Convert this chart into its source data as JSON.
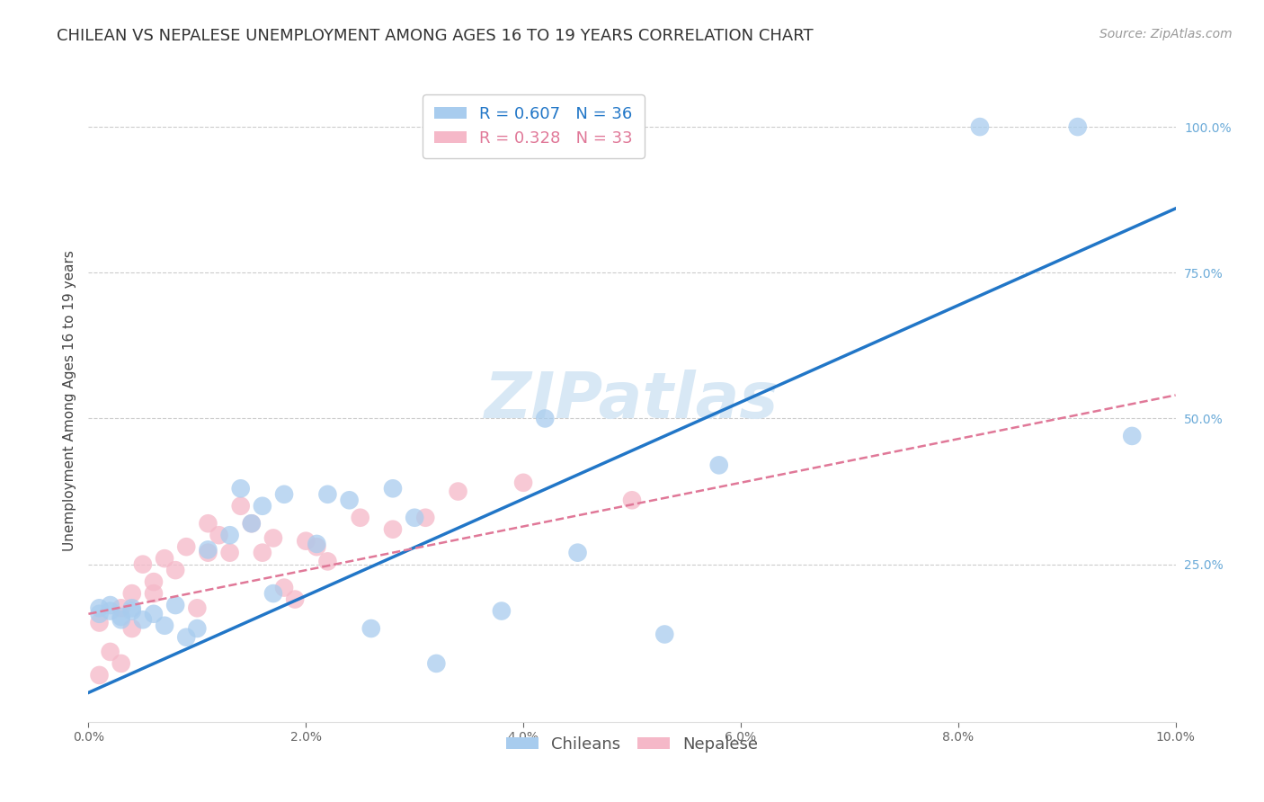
{
  "title": "CHILEAN VS NEPALESE UNEMPLOYMENT AMONG AGES 16 TO 19 YEARS CORRELATION CHART",
  "source": "Source: ZipAtlas.com",
  "ylabel": "Unemployment Among Ages 16 to 19 years",
  "xlim": [
    0.0,
    0.1
  ],
  "ylim": [
    -0.02,
    1.08
  ],
  "xticks": [
    0.0,
    0.02,
    0.04,
    0.06,
    0.08,
    0.1
  ],
  "xticklabels": [
    "0.0%",
    "2.0%",
    "4.0%",
    "6.0%",
    "8.0%",
    "10.0%"
  ],
  "yticks": [
    0.25,
    0.5,
    0.75,
    1.0
  ],
  "yticklabels": [
    "25.0%",
    "50.0%",
    "75.0%",
    "100.0%"
  ],
  "chilean_R": 0.607,
  "chilean_N": 36,
  "nepalese_R": 0.328,
  "nepalese_N": 33,
  "chilean_color": "#a8ccee",
  "nepalese_color": "#f5b8c8",
  "chilean_line_color": "#2176c7",
  "nepalese_line_color": "#e07898",
  "watermark": "ZIPatlas",
  "chilean_x": [
    0.001,
    0.001,
    0.002,
    0.002,
    0.003,
    0.003,
    0.004,
    0.004,
    0.005,
    0.006,
    0.007,
    0.008,
    0.009,
    0.01,
    0.011,
    0.013,
    0.014,
    0.015,
    0.016,
    0.017,
    0.018,
    0.021,
    0.022,
    0.024,
    0.026,
    0.028,
    0.03,
    0.032,
    0.038,
    0.042,
    0.045,
    0.053,
    0.058,
    0.082,
    0.091,
    0.096
  ],
  "chilean_y": [
    0.175,
    0.165,
    0.17,
    0.18,
    0.16,
    0.155,
    0.17,
    0.175,
    0.155,
    0.165,
    0.145,
    0.18,
    0.125,
    0.14,
    0.275,
    0.3,
    0.38,
    0.32,
    0.35,
    0.2,
    0.37,
    0.285,
    0.37,
    0.36,
    0.14,
    0.38,
    0.33,
    0.08,
    0.17,
    0.5,
    0.27,
    0.13,
    0.42,
    1.0,
    1.0,
    0.47
  ],
  "nepalese_x": [
    0.001,
    0.001,
    0.002,
    0.003,
    0.003,
    0.004,
    0.004,
    0.005,
    0.006,
    0.006,
    0.007,
    0.008,
    0.009,
    0.01,
    0.011,
    0.011,
    0.012,
    0.013,
    0.014,
    0.015,
    0.016,
    0.017,
    0.018,
    0.019,
    0.02,
    0.021,
    0.022,
    0.025,
    0.028,
    0.031,
    0.034,
    0.04,
    0.05
  ],
  "nepalese_y": [
    0.15,
    0.06,
    0.1,
    0.175,
    0.08,
    0.2,
    0.14,
    0.25,
    0.2,
    0.22,
    0.26,
    0.24,
    0.28,
    0.175,
    0.27,
    0.32,
    0.3,
    0.27,
    0.35,
    0.32,
    0.27,
    0.295,
    0.21,
    0.19,
    0.29,
    0.28,
    0.255,
    0.33,
    0.31,
    0.33,
    0.375,
    0.39,
    0.36
  ],
  "chilean_line_x0": 0.0,
  "chilean_line_y0": 0.03,
  "chilean_line_x1": 0.1,
  "chilean_line_y1": 0.86,
  "nepalese_line_x0": 0.0,
  "nepalese_line_y0": 0.165,
  "nepalese_line_x1": 0.1,
  "nepalese_line_y1": 0.54,
  "background_color": "#ffffff",
  "grid_color": "#cccccc",
  "title_fontsize": 13,
  "axis_label_fontsize": 11,
  "tick_fontsize": 10,
  "legend_fontsize": 13,
  "watermark_fontsize": 52,
  "watermark_color": "#d8e8f5",
  "source_fontsize": 10
}
